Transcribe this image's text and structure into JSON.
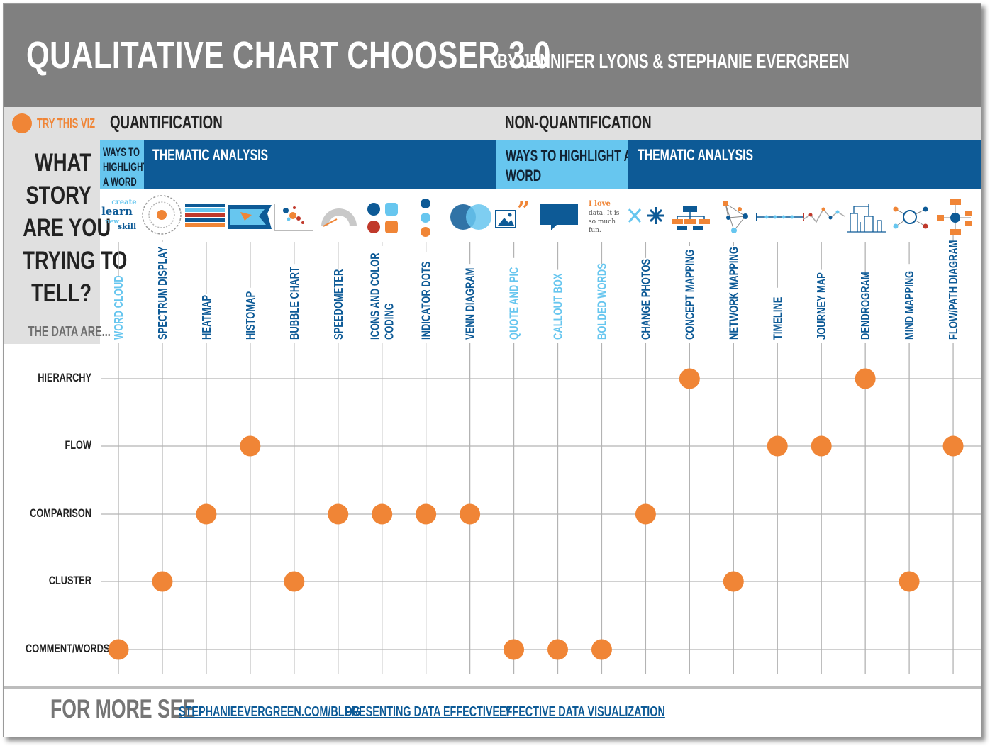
{
  "header": {
    "title": "QUALITATIVE CHART CHOOSER 3.0",
    "byline": "BY JENNIFER LYONS & STEPHANIE EVERGREEN"
  },
  "legend": {
    "label": "TRY THIS VIZ",
    "color": "#f08536"
  },
  "sections": {
    "quantification": "QUANTIFICATION",
    "non_quantification": "NON-QUANTIFICATION"
  },
  "bands": {
    "q_highlight": [
      "WAYS TO",
      "HIGHLIGHT",
      "A WORD"
    ],
    "q_thematic": "THEMATIC ANALYSIS",
    "n_highlight": [
      "WAYS TO HIGHLIGHT A",
      "WORD"
    ],
    "n_thematic": "THEMATIC ANALYSIS"
  },
  "question": {
    "lines": [
      "WHAT",
      "STORY",
      "ARE YOU",
      "TRYING TO",
      "TELL?"
    ],
    "data_are": "THE DATA ARE..."
  },
  "icon_texts": {
    "word_cloud": [
      "create",
      "learn",
      "new",
      "skill"
    ],
    "bolded_words": [
      "I love",
      "data. It is",
      "so much",
      "fun."
    ]
  },
  "colors": {
    "accent": "#f08536",
    "dark_blue": "#0d5a96",
    "light_blue": "#67c6ef",
    "grid": "#b3b3b3"
  },
  "chart_data": {
    "type": "matrix",
    "rows": [
      "HIERARCHY",
      "FLOW",
      "COMPARISON",
      "CLUSTER",
      "COMMENT/WORDS"
    ],
    "columns": [
      {
        "label": "WORD CLOUD",
        "color": "#67c6ef",
        "marks": [
          "COMMENT/WORDS"
        ]
      },
      {
        "label": "SPECTRUM DISPLAY",
        "color": "#0d5a96",
        "marks": [
          "CLUSTER"
        ]
      },
      {
        "label": "HEATMAP",
        "color": "#0d5a96",
        "marks": [
          "COMPARISON"
        ]
      },
      {
        "label": "HISTOMAP",
        "color": "#0d5a96",
        "marks": [
          "FLOW"
        ]
      },
      {
        "label": "BUBBLE CHART",
        "color": "#0d5a96",
        "marks": [
          "CLUSTER"
        ]
      },
      {
        "label": "SPEEDOMETER",
        "color": "#0d5a96",
        "marks": [
          "COMPARISON"
        ]
      },
      {
        "label": "ICONS AND COLOR CODING",
        "lines": [
          "ICONS AND COLOR",
          "CODING"
        ],
        "color": "#0d5a96",
        "marks": [
          "COMPARISON"
        ]
      },
      {
        "label": "INDICATOR DOTS",
        "color": "#0d5a96",
        "marks": [
          "COMPARISON"
        ]
      },
      {
        "label": "VENN DIAGRAM",
        "color": "#0d5a96",
        "marks": [
          "COMPARISON"
        ]
      },
      {
        "label": "QUOTE AND PIC",
        "color": "#67c6ef",
        "marks": [
          "COMMENT/WORDS"
        ]
      },
      {
        "label": "CALLOUT BOX",
        "color": "#67c6ef",
        "marks": [
          "COMMENT/WORDS"
        ]
      },
      {
        "label": "BOLDED WORDS",
        "color": "#67c6ef",
        "marks": [
          "COMMENT/WORDS"
        ]
      },
      {
        "label": "CHANGE PHOTOS",
        "color": "#0d5a96",
        "marks": [
          "COMPARISON"
        ]
      },
      {
        "label": "CONCEPT MAPPING",
        "color": "#0d5a96",
        "marks": [
          "HIERARCHY"
        ]
      },
      {
        "label": "NETWORK MAPPING",
        "color": "#0d5a96",
        "marks": [
          "CLUSTER"
        ]
      },
      {
        "label": "TIMELINE",
        "color": "#0d5a96",
        "marks": [
          "FLOW"
        ]
      },
      {
        "label": "JOURNEY MAP",
        "color": "#0d5a96",
        "marks": [
          "FLOW"
        ]
      },
      {
        "label": "DENDROGRAM",
        "color": "#0d5a96",
        "marks": [
          "HIERARCHY"
        ]
      },
      {
        "label": "MIND MAPPING",
        "color": "#0d5a96",
        "marks": [
          "CLUSTER"
        ]
      },
      {
        "label": "FLOW/PATH DIAGRAM",
        "color": "#0d5a96",
        "marks": [
          "FLOW"
        ]
      }
    ]
  },
  "footer": {
    "label": "FOR MORE SEE",
    "links": [
      "STEPHANIEEVERGREEN.COM/BLOG",
      "PRESENTING DATA EFFECTIVELY",
      "EFFECTIVE DATA VISUALIZATION"
    ]
  }
}
